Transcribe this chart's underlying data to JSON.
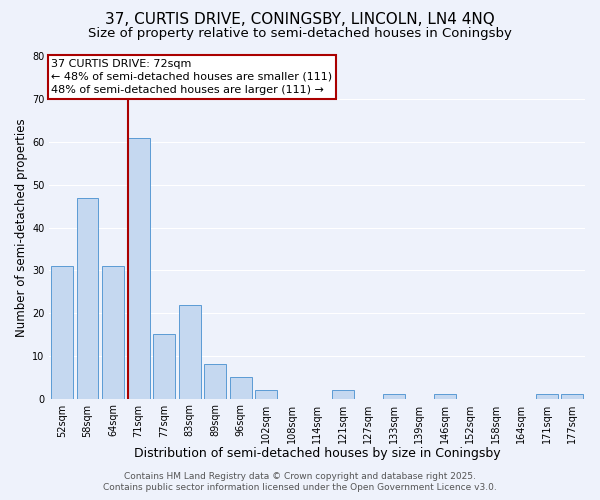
{
  "title": "37, CURTIS DRIVE, CONINGSBY, LINCOLN, LN4 4NQ",
  "subtitle": "Size of property relative to semi-detached houses in Coningsby",
  "xlabel": "Distribution of semi-detached houses by size in Coningsby",
  "ylabel": "Number of semi-detached properties",
  "categories": [
    "52sqm",
    "58sqm",
    "64sqm",
    "71sqm",
    "77sqm",
    "83sqm",
    "89sqm",
    "96sqm",
    "102sqm",
    "108sqm",
    "114sqm",
    "121sqm",
    "127sqm",
    "133sqm",
    "139sqm",
    "146sqm",
    "152sqm",
    "158sqm",
    "164sqm",
    "171sqm",
    "177sqm"
  ],
  "values": [
    31,
    47,
    31,
    61,
    15,
    22,
    8,
    5,
    2,
    0,
    0,
    2,
    0,
    1,
    0,
    1,
    0,
    0,
    0,
    1,
    1
  ],
  "bar_color": "#c5d8f0",
  "bar_edge_color": "#5b9bd5",
  "highlight_index": 3,
  "ylim": [
    0,
    80
  ],
  "yticks": [
    0,
    10,
    20,
    30,
    40,
    50,
    60,
    70,
    80
  ],
  "annotation_title": "37 CURTIS DRIVE: 72sqm",
  "annotation_line1": "← 48% of semi-detached houses are smaller (111)",
  "annotation_line2": "48% of semi-detached houses are larger (111) →",
  "annotation_box_color": "#ffffff",
  "annotation_box_edge": "#aa0000",
  "vertical_line_color": "#aa0000",
  "background_color": "#eef2fb",
  "grid_color": "#ffffff",
  "footer1": "Contains HM Land Registry data © Crown copyright and database right 2025.",
  "footer2": "Contains public sector information licensed under the Open Government Licence v3.0.",
  "title_fontsize": 11,
  "subtitle_fontsize": 9.5,
  "xlabel_fontsize": 9,
  "ylabel_fontsize": 8.5,
  "tick_fontsize": 7,
  "annotation_fontsize": 8,
  "footer_fontsize": 6.5
}
